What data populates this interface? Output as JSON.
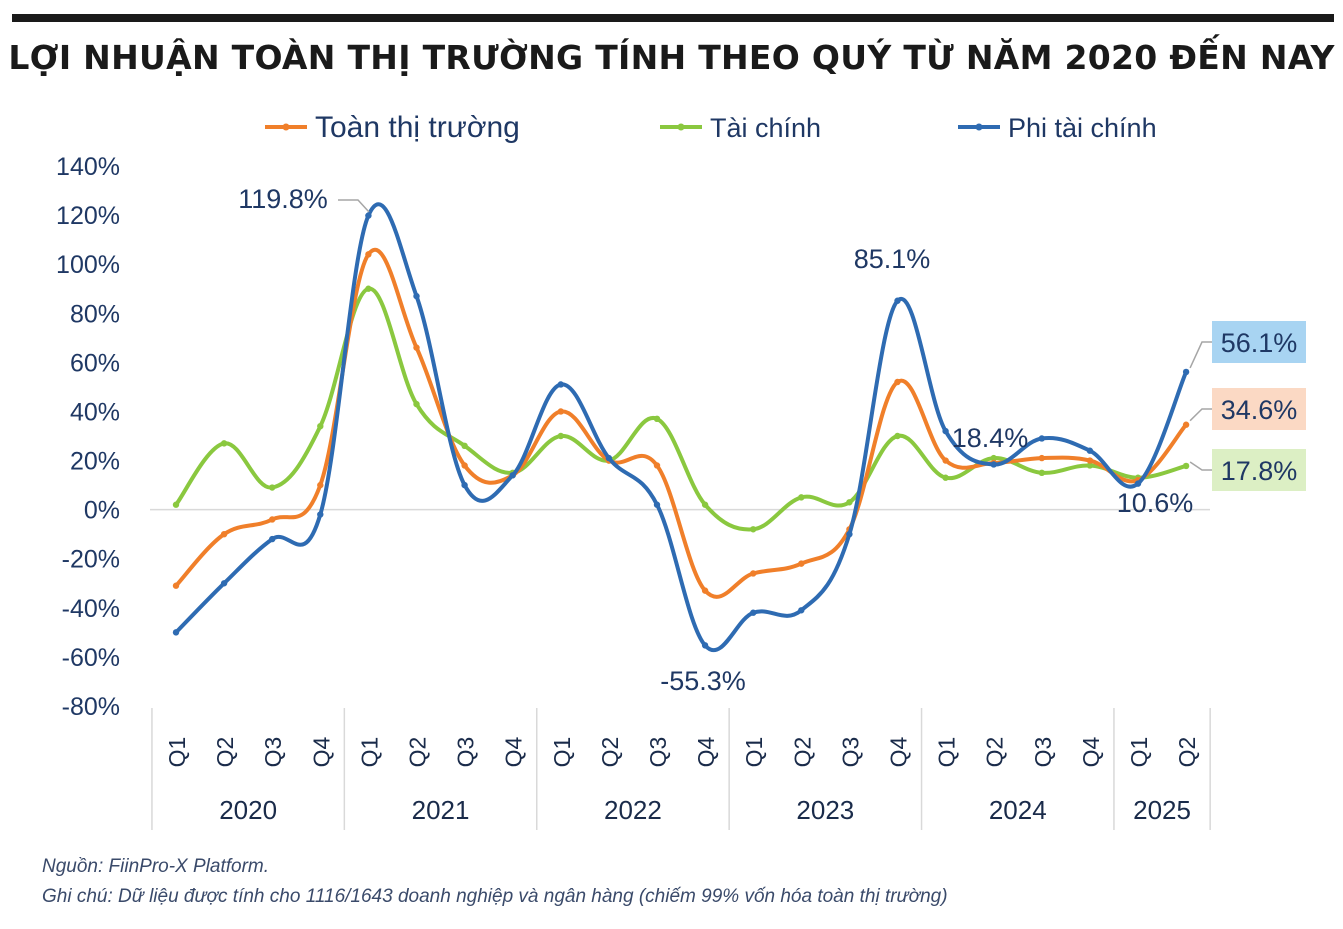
{
  "title": "LỢI NHUẬN TOÀN THỊ TRƯỜNG TÍNH THEO QUÝ TỪ NĂM 2020 ĐẾN NAY",
  "footer": {
    "source": "Nguồn: FiinPro-X Platform.",
    "note": "Ghi chú: Dữ liệu được tính cho 1116/1643 doanh nghiệp và ngân hàng (chiếm 99% vốn hóa toàn thị trường)"
  },
  "chart_data": {
    "type": "line",
    "title": "LỢI NHUẬN TOÀN THỊ TRƯỜNG TÍNH THEO QUÝ TỪ NĂM 2020 ĐẾN NAY",
    "categories": [
      "Q1",
      "Q2",
      "Q3",
      "Q4",
      "Q1",
      "Q2",
      "Q3",
      "Q4",
      "Q1",
      "Q2",
      "Q3",
      "Q4",
      "Q1",
      "Q2",
      "Q3",
      "Q4",
      "Q1",
      "Q2",
      "Q3",
      "Q4",
      "Q1",
      "Q2"
    ],
    "years": [
      {
        "label": "2020",
        "count": 4
      },
      {
        "label": "2021",
        "count": 4
      },
      {
        "label": "2022",
        "count": 4
      },
      {
        "label": "2023",
        "count": 4
      },
      {
        "label": "2024",
        "count": 4
      },
      {
        "label": "2025",
        "count": 2
      }
    ],
    "ylim": [
      -80,
      140
    ],
    "yticks": [
      "140%",
      "120%",
      "100%",
      "80%",
      "60%",
      "40%",
      "20%",
      "0%",
      "-20%",
      "-40%",
      "-60%",
      "-80%"
    ],
    "ytick_values": [
      140,
      120,
      100,
      80,
      60,
      40,
      20,
      0,
      -20,
      -40,
      -60,
      -80
    ],
    "legend_position": "top",
    "series": [
      {
        "name": "Toàn thị trường",
        "color": "#f07f2a",
        "values": [
          -31,
          -10,
          -4,
          10,
          104,
          66,
          18,
          14,
          40,
          20,
          18,
          -33,
          -26,
          -22,
          -8,
          52,
          20,
          19,
          21,
          20,
          12,
          34.6
        ]
      },
      {
        "name": "Tài chính",
        "color": "#8ac83f",
        "values": [
          2,
          27,
          9,
          34,
          90,
          43,
          26,
          15,
          30,
          20,
          37,
          2,
          -8,
          5,
          3,
          30,
          13,
          21,
          15,
          18,
          13,
          17.8
        ]
      },
      {
        "name": "Phi tài chính",
        "color": "#2e6bb2",
        "values": [
          -50,
          -30,
          -12,
          -2,
          119.8,
          87,
          10,
          14,
          51,
          21,
          2,
          -55.3,
          -42,
          -41,
          -10,
          85.1,
          32,
          18.4,
          29,
          24,
          10.6,
          56.1
        ]
      }
    ],
    "annotations": [
      {
        "text": "119.8%",
        "series": 2,
        "index": 4,
        "box": ""
      },
      {
        "text": "85.1%",
        "series": 2,
        "index": 15,
        "box": ""
      },
      {
        "text": "-55.3%",
        "series": 2,
        "index": 11,
        "box": ""
      },
      {
        "text": "18.4%",
        "series": 2,
        "index": 17,
        "box": ""
      },
      {
        "text": "10.6%",
        "series": 2,
        "index": 20,
        "box": ""
      },
      {
        "text": "56.1%",
        "series": 2,
        "index": 21,
        "box": "#a8d4f2"
      },
      {
        "text": "34.6%",
        "series": 0,
        "index": 21,
        "box": "#fbd9c4"
      },
      {
        "text": "17.8%",
        "series": 1,
        "index": 21,
        "box": "#dcefc4"
      }
    ]
  }
}
